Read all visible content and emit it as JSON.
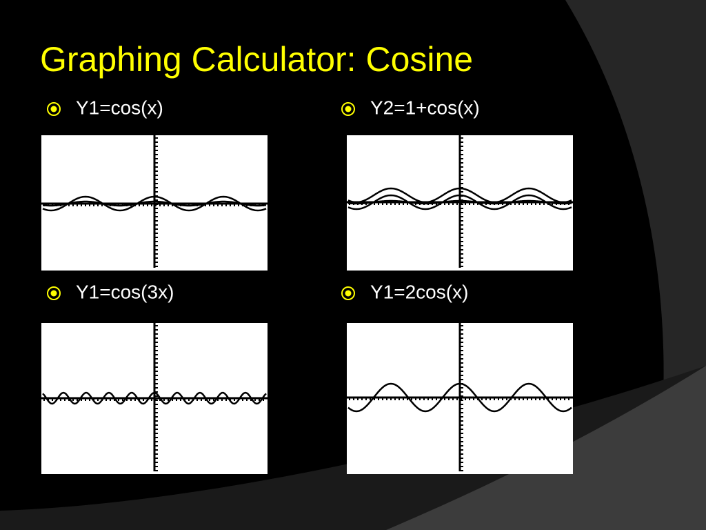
{
  "title": "Graphing Calculator: Cosine",
  "items": [
    {
      "label": "Y1=cos(x)"
    },
    {
      "label": "Y2=1+cos(x)"
    },
    {
      "label": "Y1=cos(3x)"
    },
    {
      "label": "Y1=2cos(x)"
    }
  ]
}
